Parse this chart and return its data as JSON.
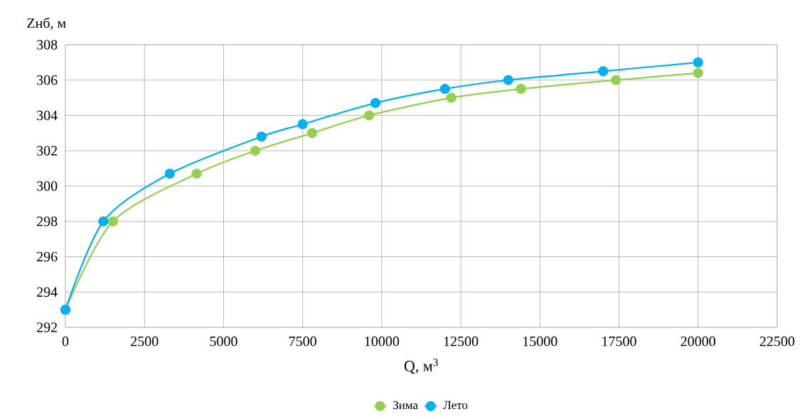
{
  "chart_data": {
    "type": "line",
    "xlabel": "Q, м$^{3}$",
    "ylabel": "Zнб, м",
    "xlim": [
      0,
      22500
    ],
    "xticks": [
      0,
      2500,
      5000,
      7500,
      10000,
      12500,
      15000,
      17500,
      20000,
      22500
    ],
    "ylim": [
      292,
      308
    ],
    "yticks": [
      292,
      294,
      296,
      298,
      300,
      302,
      304,
      306,
      308
    ],
    "grid": true,
    "legend": "bottom",
    "marker": "circle",
    "line_style": "solid",
    "series": [
      {
        "name": "Зима",
        "color": "#92d050",
        "x": [
          0,
          1500,
          4150,
          6000,
          7800,
          9600,
          12200,
          14400,
          17400,
          20000
        ],
        "values": [
          293,
          298,
          300.7,
          302,
          303,
          304,
          305,
          305.5,
          306,
          306.4
        ]
      },
      {
        "name": "Лето",
        "color": "#00b0f0",
        "x": [
          0,
          1200,
          3300,
          6200,
          7500,
          9800,
          12000,
          14000,
          17000,
          20000
        ],
        "values": [
          293,
          298,
          300.7,
          302.8,
          303.5,
          304.7,
          305.5,
          306,
          306.5,
          307
        ]
      }
    ]
  }
}
